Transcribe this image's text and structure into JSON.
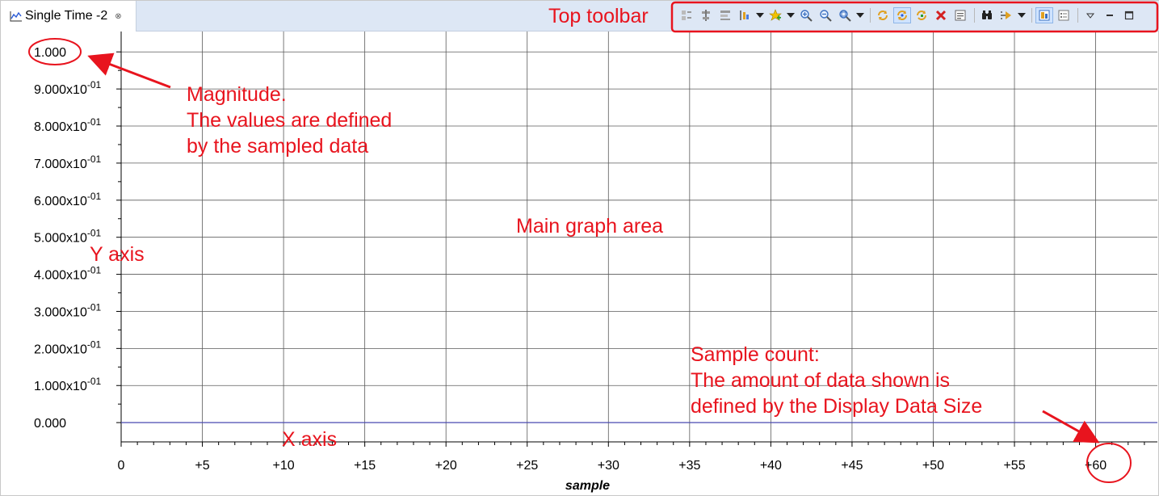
{
  "tab": {
    "title": "Single Time -2",
    "close_glyph": "⊗",
    "icon": "chart-line-icon"
  },
  "toolbar": {
    "buttons": [
      {
        "name": "align-left-icon"
      },
      {
        "name": "align-center-icon"
      },
      {
        "name": "align-right-icon"
      },
      {
        "name": "channel-select-icon"
      },
      {
        "name": "channel-select-dropdown-icon",
        "dropdown": true
      },
      {
        "name": "add-item-icon"
      },
      {
        "name": "add-item-dropdown-icon",
        "dropdown": true
      },
      {
        "name": "zoom-in-icon"
      },
      {
        "name": "zoom-out-icon"
      },
      {
        "name": "zoom-fit-icon"
      },
      {
        "name": "zoom-fit-dropdown-icon",
        "dropdown": true
      },
      {
        "name": "refresh-icon"
      },
      {
        "name": "auto-refresh-icon",
        "selected": true
      },
      {
        "name": "refresh-all-icon"
      },
      {
        "name": "delete-icon"
      },
      {
        "name": "export-icon"
      },
      {
        "name": "find-icon"
      },
      {
        "name": "step-icon"
      },
      {
        "name": "step-dropdown-icon",
        "dropdown": true
      },
      {
        "name": "view-settings-icon",
        "selected": true
      },
      {
        "name": "properties-icon"
      },
      {
        "name": "view-menu-icon"
      },
      {
        "name": "minimize-icon"
      },
      {
        "name": "maximize-icon"
      }
    ]
  },
  "chart_data": {
    "type": "line",
    "xlabel": "sample",
    "ylabel": "",
    "xlim": [
      0,
      63.8
    ],
    "ylim": [
      -0.052,
      1.055
    ],
    "x_ticks": [
      0,
      5,
      10,
      15,
      20,
      25,
      30,
      35,
      40,
      45,
      50,
      55,
      60
    ],
    "x_tick_labels": [
      "0",
      "+5",
      "+10",
      "+15",
      "+20",
      "+25",
      "+30",
      "+35",
      "+40",
      "+45",
      "+50",
      "+55",
      "+60"
    ],
    "y_ticks": [
      0,
      0.1,
      0.2,
      0.3,
      0.4,
      0.5,
      0.6,
      0.7,
      0.8,
      0.9,
      1.0
    ],
    "y_tick_labels": [
      {
        "mantissa": "0.000",
        "exp": ""
      },
      {
        "mantissa": "1.000x10",
        "exp": "-01"
      },
      {
        "mantissa": "2.000x10",
        "exp": "-01"
      },
      {
        "mantissa": "3.000x10",
        "exp": "-01"
      },
      {
        "mantissa": "4.000x10",
        "exp": "-01"
      },
      {
        "mantissa": "5.000x10",
        "exp": "-01"
      },
      {
        "mantissa": "6.000x10",
        "exp": "-01"
      },
      {
        "mantissa": "7.000x10",
        "exp": "-01"
      },
      {
        "mantissa": "8.000x10",
        "exp": "-01"
      },
      {
        "mantissa": "9.000x10",
        "exp": "-01"
      },
      {
        "mantissa": "1.000",
        "exp": ""
      }
    ],
    "grid": true,
    "series": [
      {
        "x": [
          0,
          63.8
        ],
        "y": [
          0,
          0
        ],
        "color": "#4a4ab0"
      }
    ]
  },
  "colors": {
    "annotation": "#e8141e",
    "grid": "#5a5a5a",
    "series": "#4a4ab0",
    "tab_bar": "#dde7f5"
  },
  "annotations": {
    "top_toolbar": "Top toolbar",
    "magnitude": [
      "Magnitude.",
      "The values are defined",
      "by the sampled data"
    ],
    "main_graph_area": "Main graph area",
    "y_axis": "Y axis",
    "x_axis": "X axis",
    "sample_count": [
      "Sample count:",
      "The amount of data shown is",
      "defined by the Display Data Size"
    ]
  }
}
